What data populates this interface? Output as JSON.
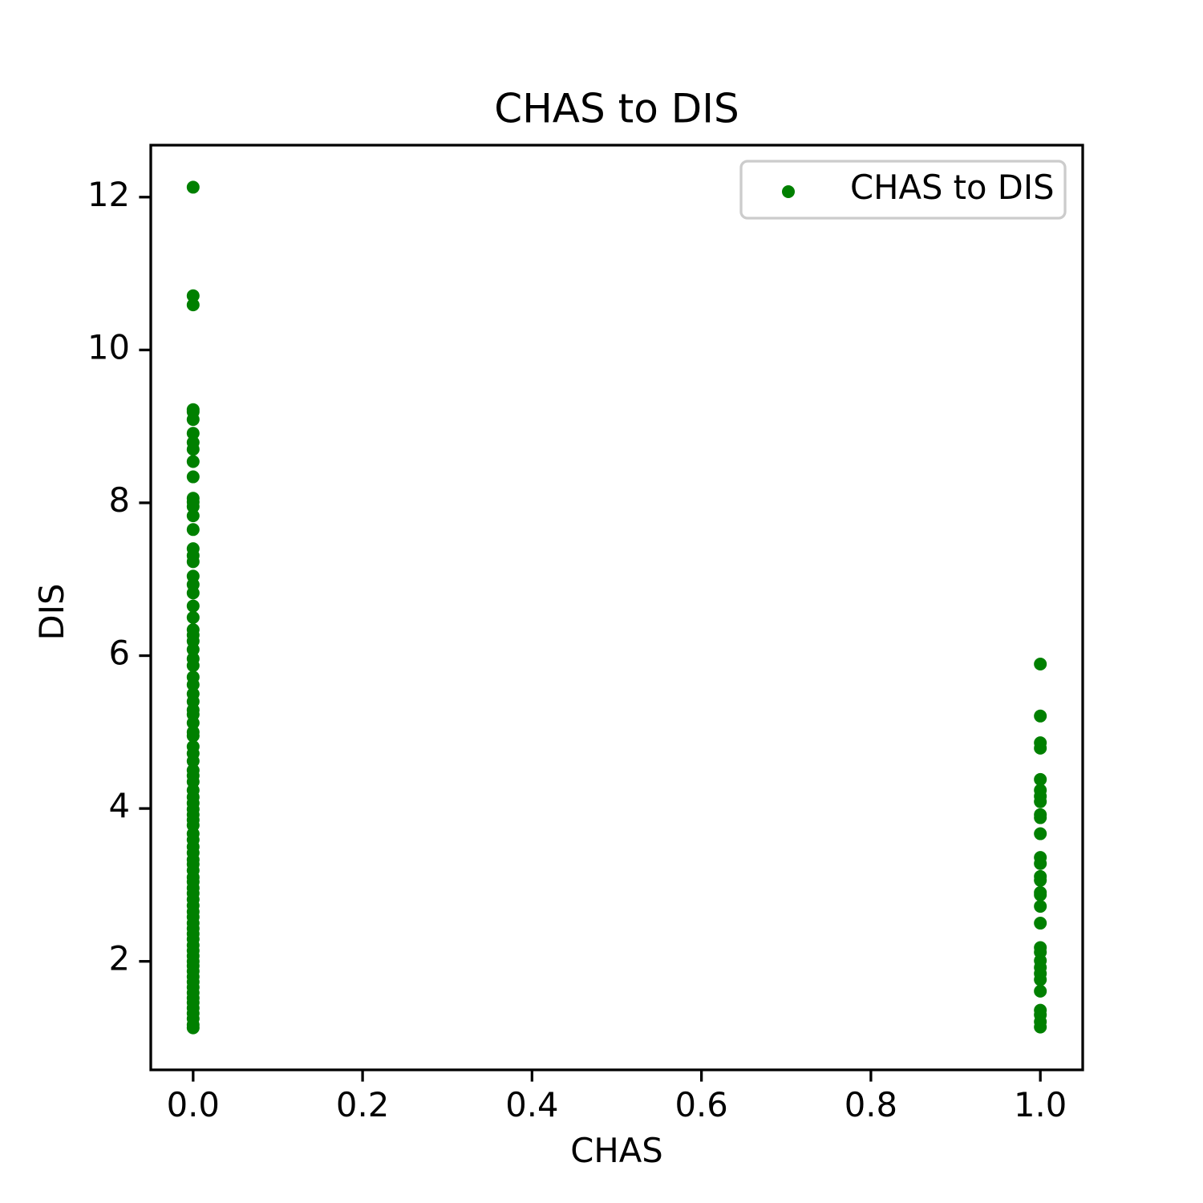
{
  "chart_data": {
    "type": "scatter",
    "title": "CHAS to DIS",
    "x_label": "CHAS",
    "y_label": "DIS",
    "series": [
      {
        "name": "CHAS to DIS",
        "color": "#008000",
        "x": [
          0,
          0,
          0,
          0,
          0,
          0,
          0,
          0,
          0,
          0,
          0,
          0,
          0,
          0,
          0,
          0,
          0,
          0,
          0,
          0,
          0,
          0,
          0,
          0,
          0,
          0,
          0,
          0,
          0,
          0,
          0,
          0,
          0,
          0,
          0,
          0,
          0,
          0,
          0,
          0,
          0,
          0,
          0,
          0,
          0,
          0,
          0,
          0,
          0,
          0,
          0,
          0,
          0,
          0,
          0,
          0,
          0,
          0,
          0,
          0,
          0,
          0,
          0,
          0,
          0,
          0,
          0,
          0,
          0,
          0,
          0,
          0,
          0,
          0,
          0,
          0,
          0,
          0,
          0,
          0,
          0,
          0,
          0,
          0,
          0,
          0,
          0,
          0,
          1,
          1,
          1,
          1,
          1,
          1,
          1,
          1,
          1,
          1,
          1,
          1,
          1,
          1,
          1,
          1,
          1,
          1,
          1,
          1,
          1,
          1,
          1,
          1,
          1,
          1,
          1,
          1,
          1,
          1
        ],
        "values": [
          12.13,
          10.71,
          10.59,
          9.22,
          9.19,
          9.09,
          8.91,
          8.79,
          8.7,
          8.54,
          8.34,
          8.06,
          8.01,
          7.95,
          7.83,
          7.65,
          7.4,
          7.31,
          7.23,
          7.04,
          6.93,
          6.82,
          6.65,
          6.5,
          6.34,
          6.27,
          6.19,
          6.08,
          5.96,
          5.87,
          5.72,
          5.62,
          5.5,
          5.4,
          5.29,
          5.23,
          5.12,
          5.0,
          4.95,
          4.81,
          4.72,
          4.62,
          4.5,
          4.43,
          4.35,
          4.24,
          4.15,
          4.07,
          3.99,
          3.92,
          3.85,
          3.78,
          3.67,
          3.59,
          3.5,
          3.42,
          3.33,
          3.27,
          3.19,
          3.1,
          3.04,
          2.96,
          2.89,
          2.81,
          2.73,
          2.65,
          2.58,
          2.5,
          2.43,
          2.36,
          2.29,
          2.21,
          2.14,
          2.07,
          2.0,
          1.94,
          1.87,
          1.8,
          1.73,
          1.66,
          1.59,
          1.52,
          1.46,
          1.39,
          1.32,
          1.25,
          1.17,
          1.13,
          5.89,
          5.21,
          4.86,
          4.79,
          4.38,
          4.24,
          4.16,
          4.09,
          3.92,
          3.88,
          3.67,
          3.36,
          3.28,
          3.11,
          3.06,
          2.9,
          2.87,
          2.72,
          2.5,
          2.18,
          2.12,
          2.01,
          1.92,
          1.84,
          1.76,
          1.61,
          1.36,
          1.3,
          1.21,
          1.14
        ]
      }
    ],
    "xlim": [
      -0.05,
      1.05
    ],
    "xticks": [
      {
        "value": 0,
        "label": "0.0"
      },
      0.2,
      0.4,
      0.6,
      0.8,
      {
        "value": 1,
        "label": "1.0"
      }
    ],
    "ylim": [
      0.58,
      12.68
    ],
    "yticks": [
      2,
      4,
      6,
      8,
      10,
      12
    ],
    "legend": "upper right"
  }
}
